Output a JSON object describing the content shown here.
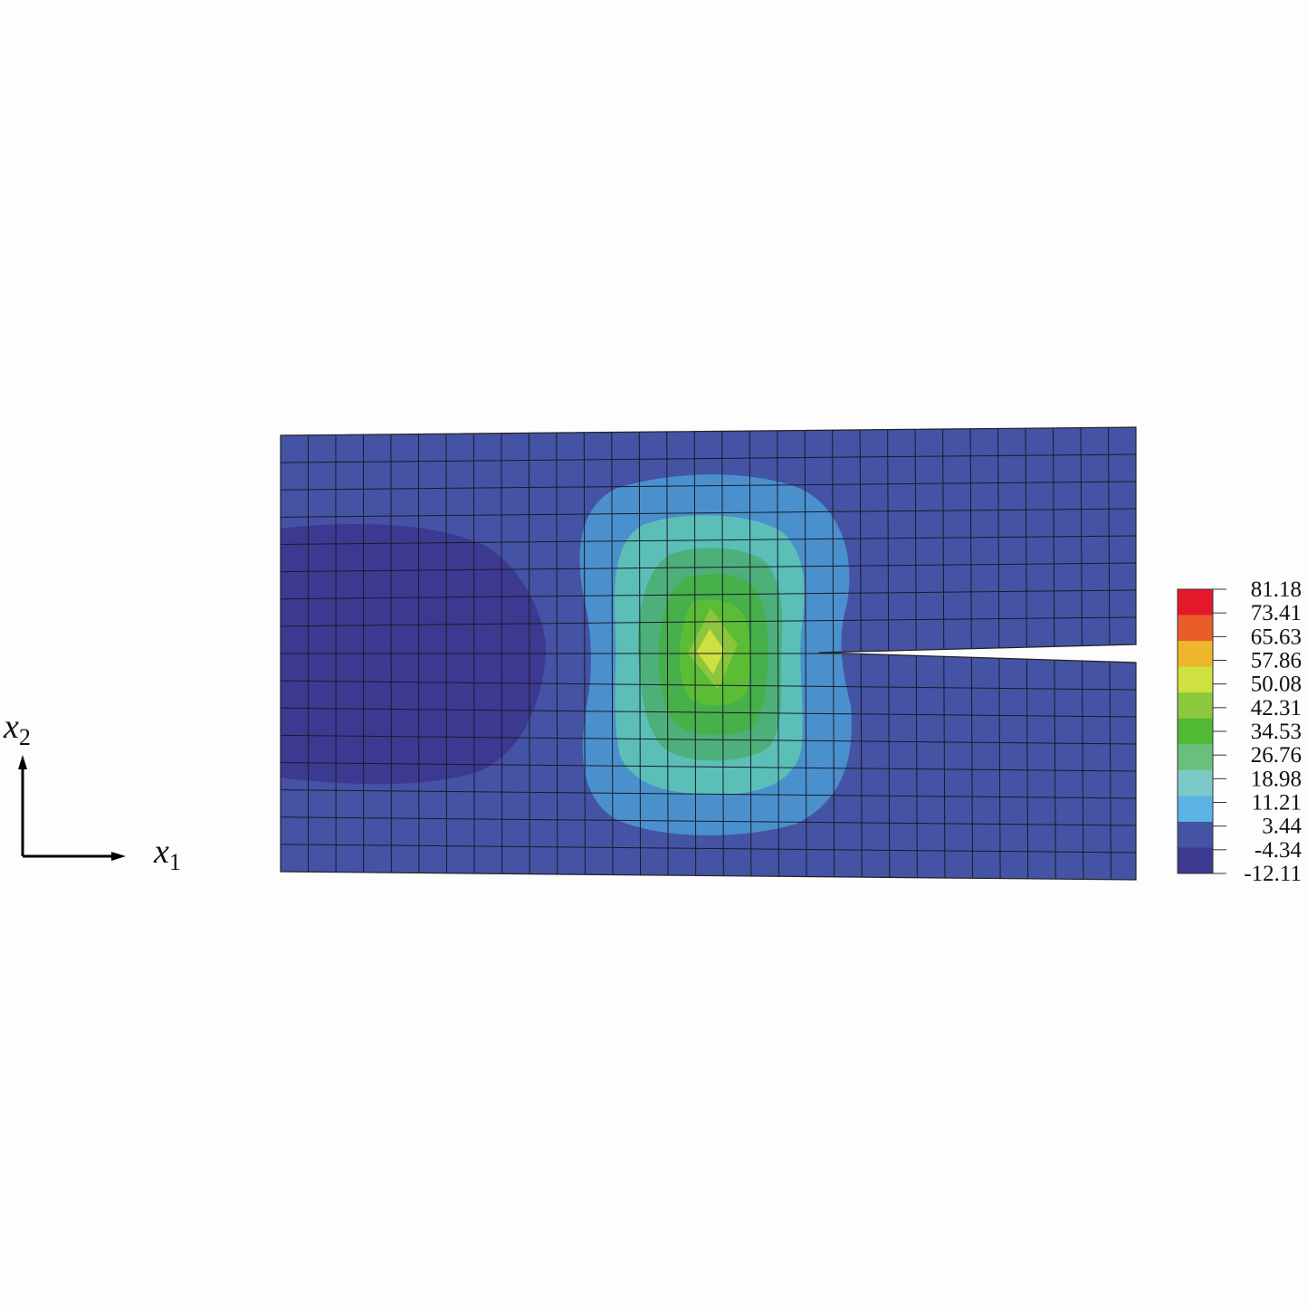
{
  "axes": {
    "horizontal": {
      "symbol": "x",
      "subscript": "1"
    },
    "vertical": {
      "symbol": "x",
      "subscript": "2"
    }
  },
  "colorbar": {
    "labels": [
      "81.18",
      "73.41",
      "65.63",
      "57.86",
      "50.08",
      "42.31",
      "34.53",
      "26.76",
      "18.98",
      "11.21",
      "3.44",
      "-4.34",
      "-12.11"
    ],
    "colors": [
      "#e3192b",
      "#e85d2a",
      "#eeb62a",
      "#cfe041",
      "#8cc83c",
      "#52b934",
      "#6bbf7d",
      "#7ccac8",
      "#5cb3e4",
      "#4453a3",
      "#3c3990"
    ]
  }
}
